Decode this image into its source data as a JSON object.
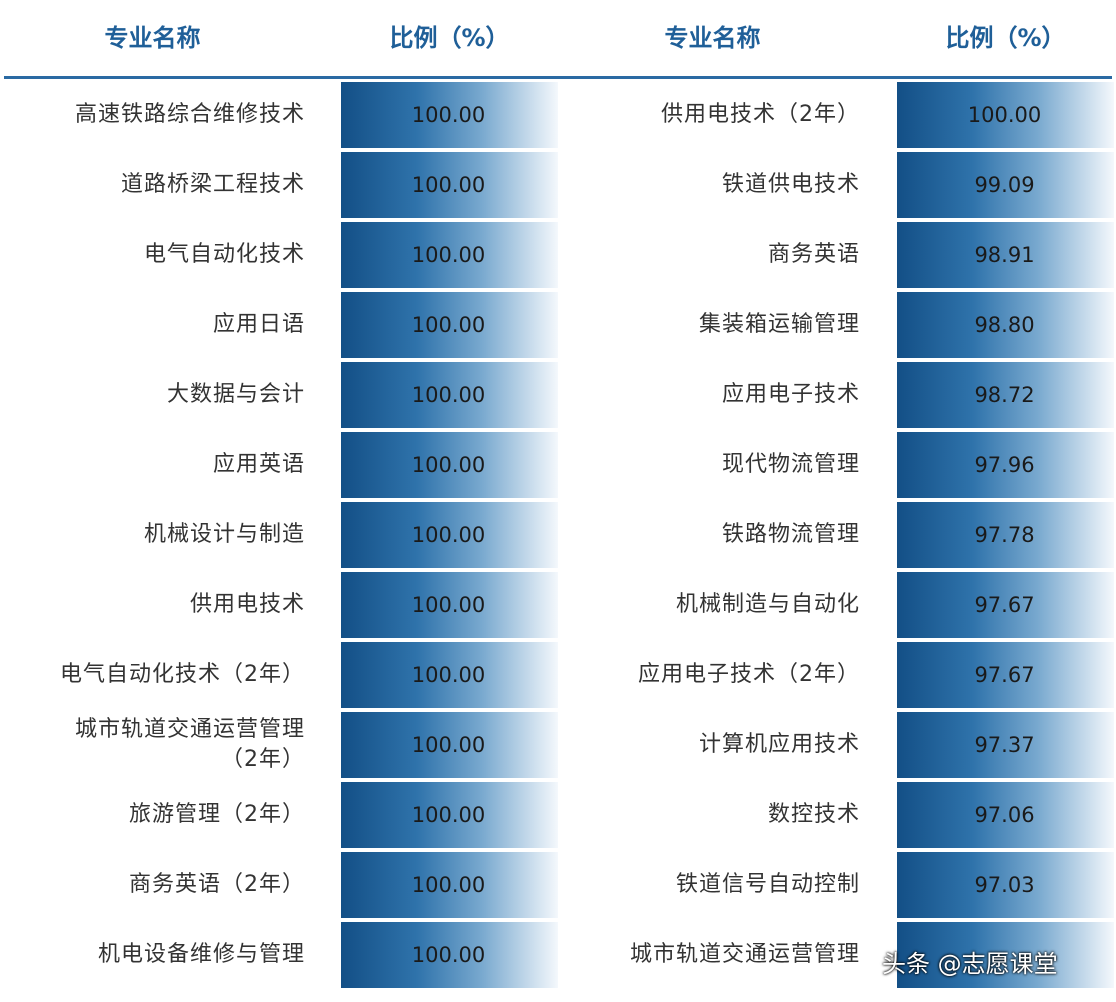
{
  "header": {
    "name": "专业名称",
    "ratio": "比例（%）"
  },
  "left": {
    "rows": [
      [
        "高速铁路综合维修技术",
        "100.00"
      ],
      [
        "道路桥梁工程技术",
        "100.00"
      ],
      [
        "电气自动化技术",
        "100.00"
      ],
      [
        "应用日语",
        "100.00"
      ],
      [
        "大数据与会计",
        "100.00"
      ],
      [
        "应用英语",
        "100.00"
      ],
      [
        "机械设计与制造",
        "100.00"
      ],
      [
        "供用电技术",
        "100.00"
      ],
      [
        "电气自动化技术（2年）",
        "100.00"
      ],
      [
        "城市轨道交通运营管理\n（2年）",
        "100.00"
      ],
      [
        "旅游管理（2年）",
        "100.00"
      ],
      [
        "商务英语（2年）",
        "100.00"
      ],
      [
        "机电设备维修与管理",
        "100.00"
      ]
    ]
  },
  "right": {
    "rows": [
      [
        "供用电技术（2年）",
        "100.00"
      ],
      [
        "铁道供电技术",
        "99.09"
      ],
      [
        "商务英语",
        "98.91"
      ],
      [
        "集装箱运输管理",
        "98.80"
      ],
      [
        "应用电子技术",
        "98.72"
      ],
      [
        "现代物流管理",
        "97.96"
      ],
      [
        "铁路物流管理",
        "97.78"
      ],
      [
        "机械制造与自动化",
        "97.67"
      ],
      [
        "应用电子技术（2年）",
        "97.67"
      ],
      [
        "计算机应用技术",
        "97.37"
      ],
      [
        "数控技术",
        "97.06"
      ],
      [
        "铁道信号自动控制",
        "97.03"
      ],
      [
        "城市轨道交通运营管理"
      ]
    ]
  },
  "watermark": "头条 @志愿课堂"
}
